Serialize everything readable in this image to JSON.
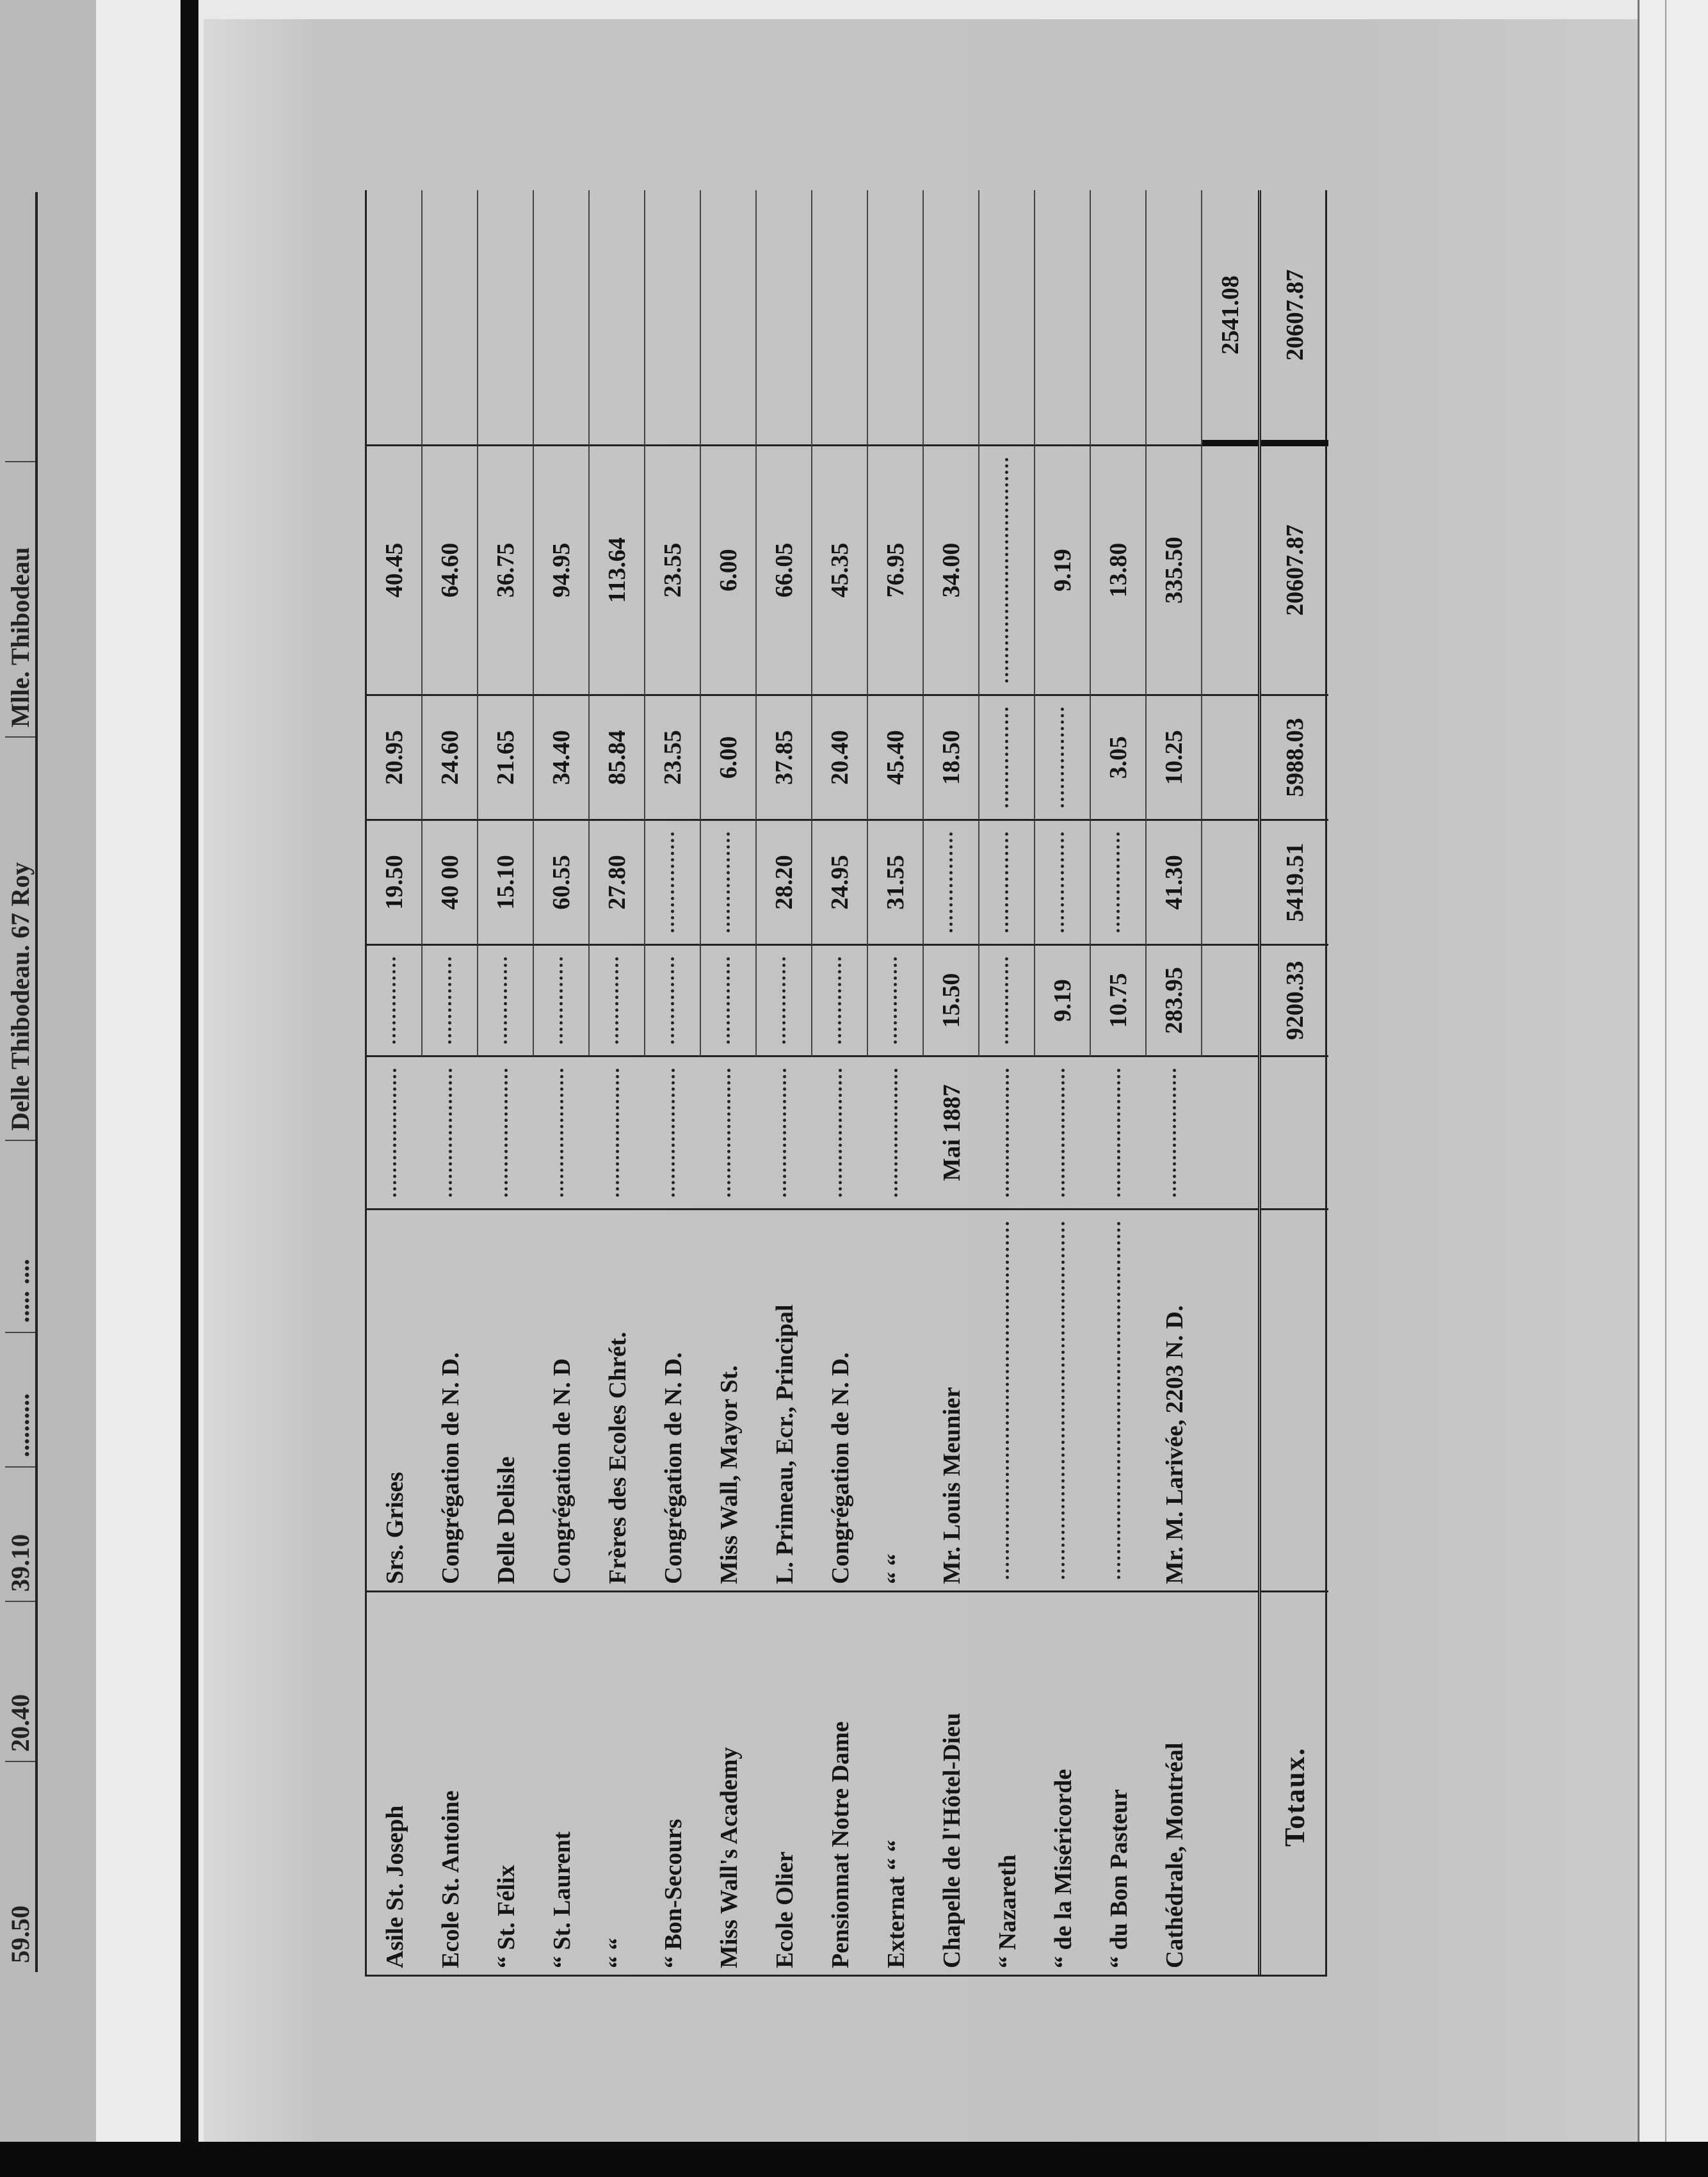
{
  "left_page_fragment": [
    "Mlle. Thibodeau",
    "Delle Thibodeau. 67 Roy",
    ".....  ....",
    "..........",
    "39.10",
    "20.40",
    "59.50"
  ],
  "rows": [
    {
      "institution": "Asile St. Joseph",
      "director": "Srs. Grises",
      "date": "",
      "a": "",
      "b": "19.50",
      "c": "20.95",
      "d": "40.45",
      "e": ""
    },
    {
      "institution": "Ecole St. Antoine",
      "director": "Congrégation de N. D.",
      "date": "",
      "a": "",
      "b": "40 00",
      "c": "24.60",
      "d": "64.60",
      "e": ""
    },
    {
      "institution": "  “   St. Félix",
      "director": "Delle Delisle",
      "date": "",
      "a": "",
      "b": "15.10",
      "c": "21.65",
      "d": "36.75",
      "e": ""
    },
    {
      "institution": "  “   St. Laurent",
      "director": "Congrégation de N. D",
      "date": "",
      "a": "",
      "b": "60.55",
      "c": "34.40",
      "d": "94.95",
      "e": ""
    },
    {
      "institution": "  “      “",
      "director": "Frères des Ecoles Chrét.",
      "date": "",
      "a": "",
      "b": "27.80",
      "c": "85.84",
      "d": "113.64",
      "e": ""
    },
    {
      "institution": "  “   Bon-Secours",
      "director": "Congrégation de N. D.",
      "date": "",
      "a": "",
      "b": "",
      "c": "23.55",
      "d": "23.55",
      "e": ""
    },
    {
      "institution": "Miss Wall's Academy",
      "director": "Miss Wall, Mayor St.",
      "date": "",
      "a": "",
      "b": "",
      "c": "6.00",
      "d": "6.00",
      "e": ""
    },
    {
      "institution": "Ecole Olier",
      "director": "L. Primeau, Ecr., Principal",
      "date": "",
      "a": "",
      "b": "28.20",
      "c": "37.85",
      "d": "66.05",
      "e": ""
    },
    {
      "institution": "Pensionnat Notre Dame",
      "director": "Congrégation de N. D.",
      "date": "",
      "a": "",
      "b": "24.95",
      "c": "20.40",
      "d": "45.35",
      "e": ""
    },
    {
      "institution": "Externat    “     “",
      "director": "      “       “",
      "date": "",
      "a": "",
      "b": "31.55",
      "c": "45.40",
      "d": "76.95",
      "e": ""
    },
    {
      "institution": "Chapelle de l'Hôtel-Dieu",
      "director": "Mr. Louis Meunier",
      "date": "Mai 1887",
      "a": "15.50",
      "b": "",
      "c": "18.50",
      "d": "34.00",
      "e": ""
    },
    {
      "institution": "   “     Nazareth",
      "director": "",
      "date": "",
      "a": "",
      "b": "",
      "c": "",
      "d": "",
      "e": ""
    },
    {
      "institution": "   “     de la Miséricorde",
      "director": "",
      "date": "",
      "a": "9.19",
      "b": "",
      "c": "",
      "d": "9.19",
      "e": ""
    },
    {
      "institution": "   “     du Bon Pasteur",
      "director": "",
      "date": "",
      "a": "10.75",
      "b": "",
      "c": "3.05",
      "d": "13.80",
      "e": ""
    },
    {
      "institution": "Cathédrale, Montréal",
      "director": "Mr. M. Larivée, 2203 N. D.",
      "date": "",
      "a": "283.95",
      "b": "41.30",
      "c": "10.25",
      "d": "335.50",
      "e": ""
    },
    {
      "institution": "",
      "director": "",
      "date": "",
      "a": "",
      "b": "",
      "c": "",
      "d": "",
      "e": "2541.08"
    }
  ],
  "totals": {
    "label": "Totaux.",
    "a": "9200.33",
    "b": "5419.51",
    "c": "5988.03",
    "d": "20607.87",
    "e": "20607.87"
  }
}
